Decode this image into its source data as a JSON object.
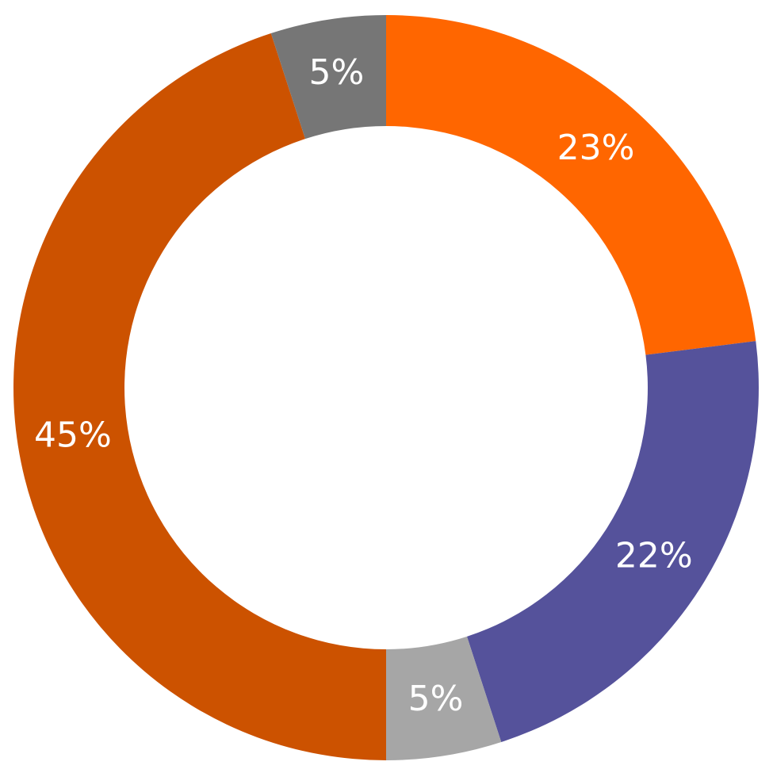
{
  "chart_data": {
    "type": "donut",
    "values": [
      23,
      22,
      5,
      45,
      5
    ],
    "value_labels": [
      "23%",
      "22%",
      "5%",
      "45%",
      "5%"
    ],
    "colors": [
      "#ff6600",
      "#55529b",
      "#a6a6a6",
      "#cc5200",
      "#767676"
    ]
  }
}
